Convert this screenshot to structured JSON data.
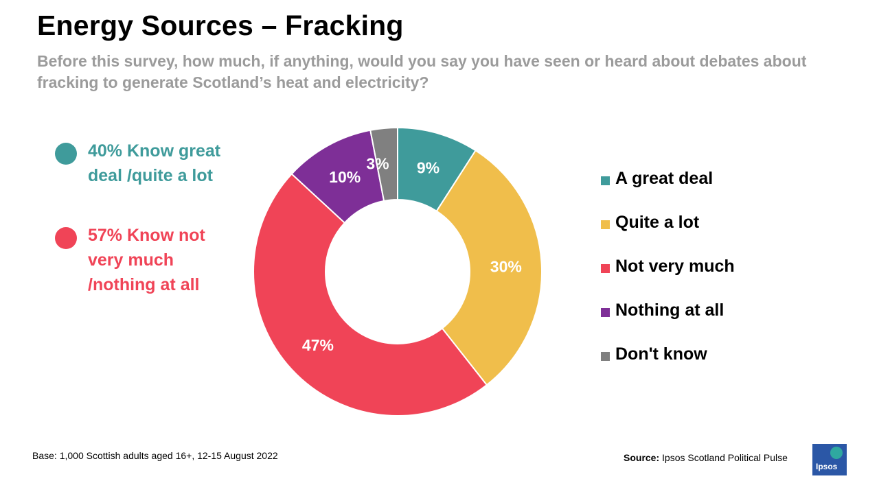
{
  "header": {
    "title": "Energy Sources – Fracking",
    "subtitle": "Before this survey, how much, if anything, would you say you have seen or heard about debates about fracking to generate Scotland’s heat and electricity?"
  },
  "summary": [
    {
      "text": "40% Know great deal /quite a lot",
      "color": "#3f9b9b"
    },
    {
      "text": "57% Know not very much /nothing at all",
      "color": "#f04457"
    }
  ],
  "chart_data": {
    "type": "pie",
    "donut": true,
    "categories": [
      "A great deal",
      "Quite a lot",
      "Not very much",
      "Nothing at all",
      "Don't know"
    ],
    "values": [
      9,
      30,
      47,
      10,
      3
    ],
    "labels": [
      "9%",
      "30%",
      "47%",
      "10%",
      "3%"
    ],
    "colors": [
      "#3f9b9b",
      "#f0be4b",
      "#f04457",
      "#7e2f97",
      "#808080"
    ],
    "unit": "%",
    "legend_position": "right"
  },
  "footer": {
    "base": "Base: 1,000 Scottish adults aged 16+, 12-15 August 2022",
    "source_label": "Source:",
    "source_text": "Ipsos Scotland Political Pulse",
    "logo_text": "Ipsos"
  }
}
